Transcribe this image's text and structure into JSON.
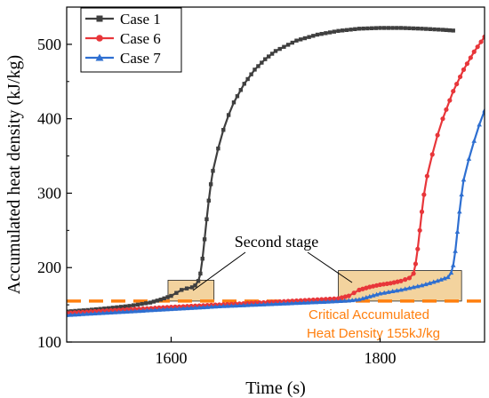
{
  "chart_data": {
    "type": "line",
    "xlabel": "Time (s)",
    "ylabel": "Accumulated heat density (kJ/kg)",
    "xlim": [
      1500,
      1900
    ],
    "ylim": [
      100,
      550
    ],
    "xticks": [
      1600,
      1800
    ],
    "yticks": [
      100,
      200,
      300,
      400,
      500
    ],
    "legend_position": "top-left",
    "series": [
      {
        "name": "Case 1",
        "color": "#3f3f3f",
        "marker": "square",
        "points": [
          [
            1500,
            141
          ],
          [
            1520,
            143
          ],
          [
            1540,
            145.5
          ],
          [
            1560,
            148.5
          ],
          [
            1580,
            153
          ],
          [
            1590,
            157
          ],
          [
            1600,
            162
          ],
          [
            1605,
            166
          ],
          [
            1610,
            170
          ],
          [
            1615,
            172
          ],
          [
            1620,
            173.5
          ],
          [
            1623,
            176
          ],
          [
            1626,
            182
          ],
          [
            1628,
            192
          ],
          [
            1630,
            212
          ],
          [
            1632,
            238
          ],
          [
            1634,
            265
          ],
          [
            1636,
            290
          ],
          [
            1638,
            312
          ],
          [
            1640,
            330
          ],
          [
            1645,
            360
          ],
          [
            1650,
            385
          ],
          [
            1655,
            405
          ],
          [
            1660,
            422
          ],
          [
            1670,
            447
          ],
          [
            1680,
            466
          ],
          [
            1690,
            480
          ],
          [
            1700,
            491
          ],
          [
            1720,
            505
          ],
          [
            1740,
            513
          ],
          [
            1760,
            518
          ],
          [
            1780,
            521
          ],
          [
            1800,
            522
          ],
          [
            1820,
            522
          ],
          [
            1840,
            521
          ],
          [
            1860,
            519.5
          ],
          [
            1870,
            518.5
          ]
        ]
      },
      {
        "name": "Case 6",
        "color": "#e8363a",
        "marker": "circle",
        "points": [
          [
            1500,
            139
          ],
          [
            1550,
            143
          ],
          [
            1600,
            147
          ],
          [
            1650,
            150.5
          ],
          [
            1700,
            154
          ],
          [
            1740,
            157
          ],
          [
            1760,
            158.5
          ],
          [
            1770,
            162
          ],
          [
            1775,
            166
          ],
          [
            1780,
            170
          ],
          [
            1790,
            174
          ],
          [
            1800,
            177
          ],
          [
            1810,
            179
          ],
          [
            1820,
            182
          ],
          [
            1828,
            186
          ],
          [
            1832,
            192
          ],
          [
            1834,
            205
          ],
          [
            1836,
            225
          ],
          [
            1838,
            250
          ],
          [
            1840,
            275
          ],
          [
            1842,
            298
          ],
          [
            1845,
            323
          ],
          [
            1850,
            352
          ],
          [
            1855,
            378
          ],
          [
            1860,
            400
          ],
          [
            1870,
            437
          ],
          [
            1880,
            466
          ],
          [
            1890,
            490
          ],
          [
            1900,
            510
          ]
        ]
      },
      {
        "name": "Case 7",
        "color": "#2e6fd1",
        "marker": "triangle",
        "points": [
          [
            1500,
            136
          ],
          [
            1550,
            140
          ],
          [
            1600,
            144
          ],
          [
            1650,
            148
          ],
          [
            1700,
            151
          ],
          [
            1750,
            154
          ],
          [
            1770,
            155.5
          ],
          [
            1780,
            157
          ],
          [
            1790,
            161
          ],
          [
            1800,
            165
          ],
          [
            1820,
            170
          ],
          [
            1840,
            176
          ],
          [
            1855,
            182
          ],
          [
            1865,
            187
          ],
          [
            1868,
            193
          ],
          [
            1870,
            203
          ],
          [
            1872,
            222
          ],
          [
            1874,
            248
          ],
          [
            1876,
            275
          ],
          [
            1878,
            298
          ],
          [
            1880,
            318
          ],
          [
            1885,
            346
          ],
          [
            1890,
            370
          ],
          [
            1895,
            392
          ],
          [
            1900,
            411
          ]
        ]
      }
    ],
    "critical_line": {
      "y": 155,
      "color": "#ff7f0e",
      "label_line1": "Critical Accumulated",
      "label_line2": "Heat Density 155kJ/kg"
    },
    "stage_boxes": [
      {
        "x0": 1597,
        "x1": 1641,
        "y0": 155,
        "y1": 183
      },
      {
        "x0": 1760,
        "x1": 1878,
        "y0": 155,
        "y1": 196
      }
    ],
    "stage_box_color": "#f3d39e",
    "annotation": {
      "text": "Second stage"
    }
  }
}
